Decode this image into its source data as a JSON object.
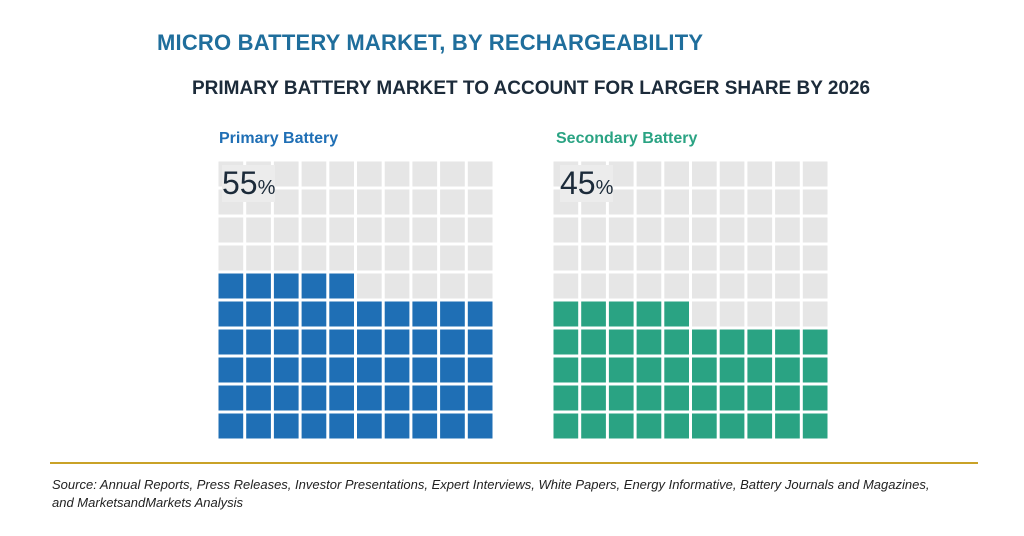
{
  "title": "MICRO BATTERY MARKET, BY RECHARGEABILITY",
  "subtitle": "PRIMARY BATTERY MARKET TO ACCOUNT FOR LARGER SHARE BY 2026",
  "source": "Source: Annual Reports, Press Releases, Investor Presentations, Expert Interviews, White Papers, Energy Informative, Battery Journals and Magazines, and MarketsandMarkets Analysis",
  "colors": {
    "title": "#1f6e9c",
    "primary": "#1f6fb5",
    "secondary": "#2aa383",
    "empty_cell": "#e6e6e6",
    "rule": "#c9a227"
  },
  "panels": [
    {
      "label": "Primary Battery",
      "value": "55",
      "unit": "%"
    },
    {
      "label": "Secondary Battery",
      "value": "45",
      "unit": "%"
    }
  ],
  "chart_data": {
    "type": "waffle",
    "grid": {
      "rows": 10,
      "cols": 10
    },
    "series": [
      {
        "name": "Primary Battery",
        "values": [
          55
        ],
        "color": "#1f6fb5"
      },
      {
        "name": "Secondary Battery",
        "values": [
          45
        ],
        "color": "#2aa383"
      }
    ],
    "unit": "%"
  }
}
